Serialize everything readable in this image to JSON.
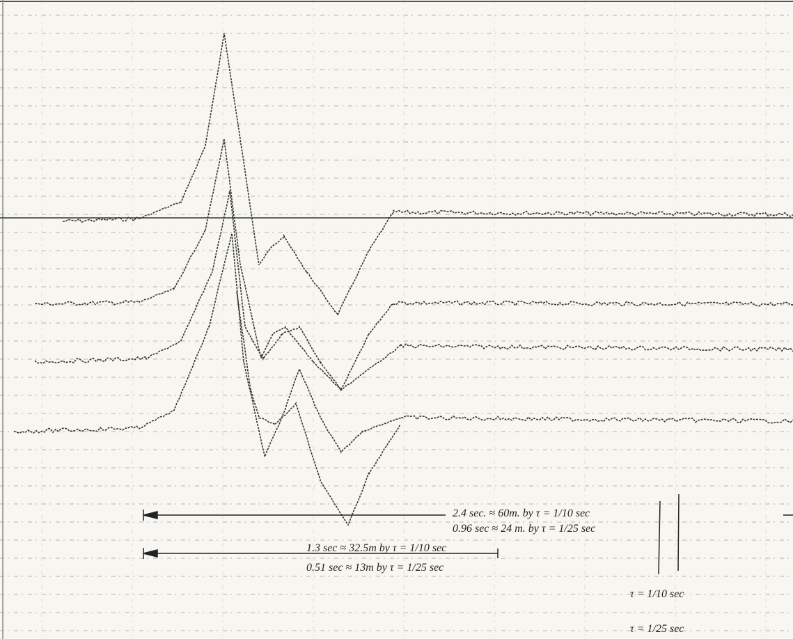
{
  "annotations": {
    "upper_left": "2.4 sec. ≈ 60m. by τ = 1/10 sec",
    "lower_left": "0.96 sec ≈ 24 m. by τ = 1/25 sec",
    "upper_center": "1.3 sec ≈ 32.5m by τ = 1/10 sec",
    "lower_center": "0.51 sec ≈ 13m by τ = 1/25 sec",
    "tau_a": "τ = 1/10 sec",
    "tau_b": "τ = 1/25 sec"
  }
}
